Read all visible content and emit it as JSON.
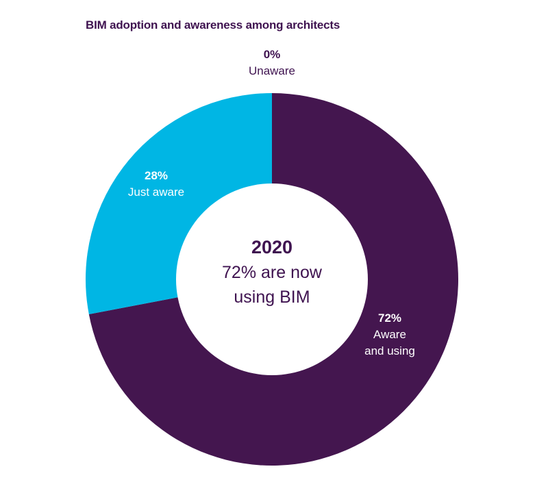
{
  "chart_data": {
    "type": "pie",
    "title": "BIM adoption and awareness among architects",
    "slices": [
      {
        "label": "Aware and using",
        "percent_label": "72%",
        "value": 72,
        "color": "#44164f",
        "label_color": "#ffffff",
        "label_lines": [
          "Aware",
          "and using"
        ]
      },
      {
        "label": "Just aware",
        "percent_label": "28%",
        "value": 28,
        "color": "#00b6e4",
        "label_color": "#ffffff",
        "label_lines": [
          "Just aware"
        ]
      },
      {
        "label": "Unaware",
        "percent_label": "0%",
        "value": 0,
        "color": "#44164f",
        "label_color": "#3f1350",
        "label_lines": [
          "Unaware"
        ]
      }
    ],
    "center_text": {
      "year": "2020",
      "line1": "72% are now",
      "line2": "using BIM"
    },
    "start_angle": "12 o'clock",
    "direction": "clockwise",
    "donut": true
  }
}
